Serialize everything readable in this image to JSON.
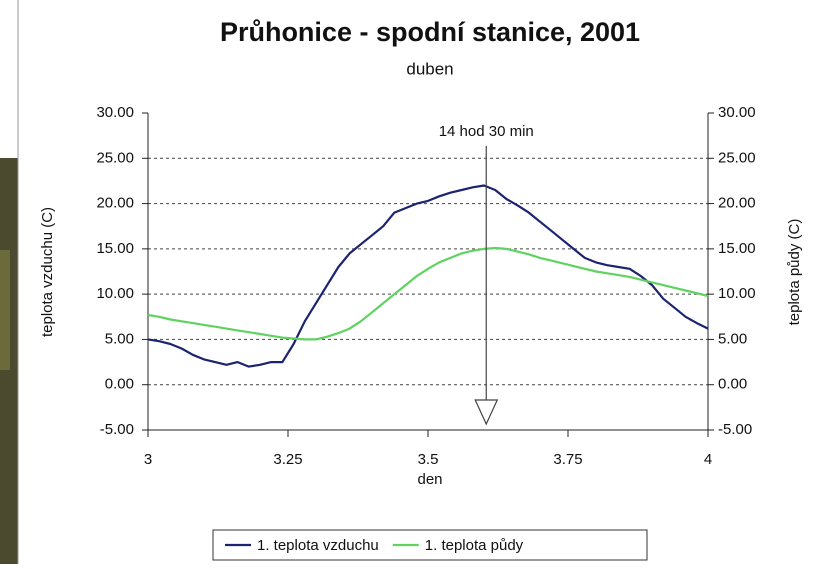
{
  "chart_data": {
    "type": "line",
    "title": "Průhonice - spodní stanice, 2001",
    "subtitle": "duben",
    "x_label": "den",
    "y_label": "teplota vzduchu (C)",
    "y2_label": "teplota půdy (C)",
    "annotation": {
      "text": "14 hod 30 min",
      "x": 3.604
    },
    "x": [
      3.0,
      3.02,
      3.04,
      3.06,
      3.08,
      3.1,
      3.12,
      3.14,
      3.16,
      3.18,
      3.2,
      3.22,
      3.24,
      3.26,
      3.28,
      3.3,
      3.32,
      3.34,
      3.36,
      3.38,
      3.4,
      3.42,
      3.44,
      3.46,
      3.48,
      3.5,
      3.52,
      3.54,
      3.56,
      3.58,
      3.6,
      3.62,
      3.64,
      3.66,
      3.68,
      3.7,
      3.72,
      3.74,
      3.76,
      3.78,
      3.8,
      3.82,
      3.84,
      3.86,
      3.88,
      3.9,
      3.92,
      3.94,
      3.96,
      3.98,
      4.0
    ],
    "series": [
      {
        "name": "1. teplota vzduchu",
        "color": "#1c2370",
        "axis": "y",
        "values": [
          5.0,
          4.8,
          4.5,
          4.0,
          3.3,
          2.8,
          2.5,
          2.2,
          2.5,
          2.0,
          2.2,
          2.5,
          2.5,
          4.5,
          7.0,
          9.0,
          11.0,
          13.0,
          14.5,
          15.5,
          16.5,
          17.5,
          19.0,
          19.5,
          20.0,
          20.3,
          20.8,
          21.2,
          21.5,
          21.8,
          22.0,
          21.5,
          20.5,
          19.8,
          19.0,
          18.0,
          17.0,
          16.0,
          15.0,
          14.0,
          13.5,
          13.2,
          13.0,
          12.8,
          12.0,
          11.0,
          9.5,
          8.5,
          7.5,
          6.8,
          6.2
        ]
      },
      {
        "name": "1. teplota půdy",
        "color": "#5fd25f",
        "axis": "y2",
        "values": [
          7.7,
          7.5,
          7.2,
          7.0,
          6.8,
          6.6,
          6.4,
          6.2,
          6.0,
          5.8,
          5.6,
          5.4,
          5.2,
          5.1,
          5.0,
          5.0,
          5.3,
          5.7,
          6.2,
          7.0,
          8.0,
          9.0,
          10.0,
          11.0,
          12.0,
          12.8,
          13.5,
          14.0,
          14.5,
          14.8,
          15.0,
          15.1,
          15.0,
          14.7,
          14.4,
          14.0,
          13.7,
          13.4,
          13.1,
          12.8,
          12.5,
          12.3,
          12.1,
          11.9,
          11.6,
          11.3,
          11.0,
          10.7,
          10.4,
          10.1,
          9.8
        ]
      }
    ],
    "xlim": [
      3,
      4
    ],
    "xticks": [
      3,
      3.25,
      3.5,
      3.75,
      4
    ],
    "ylim": [
      -5,
      30
    ],
    "yticks": [
      {
        "value": -5,
        "label": "-5.00"
      },
      {
        "value": 0,
        "label": "0.00"
      },
      {
        "value": 5,
        "label": "5.00"
      },
      {
        "value": 10,
        "label": "10.00"
      },
      {
        "value": 15,
        "label": "15.00"
      },
      {
        "value": 20,
        "label": "20.00"
      },
      {
        "value": 25,
        "label": "25.00"
      },
      {
        "value": 30,
        "label": "30.00"
      }
    ],
    "y2lim": [
      -5,
      30
    ],
    "y2ticks": [
      {
        "value": -5,
        "label": "-5.00"
      },
      {
        "value": 0,
        "label": "0.00"
      },
      {
        "value": 5,
        "label": "5.00"
      },
      {
        "value": 10,
        "label": "10.00"
      },
      {
        "value": 15,
        "label": "15.00"
      },
      {
        "value": 20,
        "label": "20.00"
      },
      {
        "value": 25,
        "label": "25.00"
      },
      {
        "value": 30,
        "label": "30.00"
      }
    ],
    "grid": true,
    "legend": "bottom"
  }
}
